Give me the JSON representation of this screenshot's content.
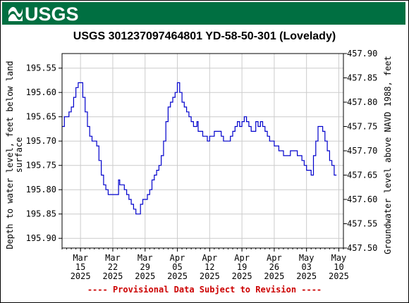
{
  "header": {
    "logo_text": "USGS",
    "banner_color": "#006f41"
  },
  "chart_data": {
    "type": "line",
    "title": "USGS 301237097464801 YD-58-50-301 (Lovelady)",
    "ylabel_left_line1": "Depth to water level, feet below land",
    "ylabel_left_line2": "surface",
    "ylabel_right": "Groundwater level above NAVD 1988, feet",
    "left_axis": {
      "range": [
        195.52,
        195.92
      ],
      "inverted": true,
      "ticks": [
        "195.55",
        "195.60",
        "195.65",
        "195.70",
        "195.75",
        "195.80",
        "195.85",
        "195.90"
      ],
      "tick_values": [
        195.55,
        195.6,
        195.65,
        195.7,
        195.75,
        195.8,
        195.85,
        195.9
      ]
    },
    "right_axis": {
      "range": [
        457.5,
        457.9
      ],
      "ticks": [
        "457.90",
        "457.85",
        "457.80",
        "457.75",
        "457.70",
        "457.65",
        "457.60",
        "457.55",
        "457.50"
      ],
      "tick_values": [
        457.9,
        457.85,
        457.8,
        457.75,
        457.7,
        457.65,
        457.6,
        457.55,
        457.5
      ]
    },
    "x_axis": {
      "start": "2025-03-11",
      "end": "2025-05-11",
      "ticks": [
        {
          "date": "2025-03-15",
          "line1": "Mar",
          "line2": "15",
          "line3": "2025"
        },
        {
          "date": "2025-03-22",
          "line1": "Mar",
          "line2": "22",
          "line3": "2025"
        },
        {
          "date": "2025-03-29",
          "line1": "Mar",
          "line2": "29",
          "line3": "2025"
        },
        {
          "date": "2025-04-05",
          "line1": "Apr",
          "line2": "05",
          "line3": "2025"
        },
        {
          "date": "2025-04-12",
          "line1": "Apr",
          "line2": "12",
          "line3": "2025"
        },
        {
          "date": "2025-04-19",
          "line1": "Apr",
          "line2": "19",
          "line3": "2025"
        },
        {
          "date": "2025-04-26",
          "line1": "Apr",
          "line2": "26",
          "line3": "2025"
        },
        {
          "date": "2025-05-03",
          "line1": "May",
          "line2": "03",
          "line3": "2025"
        },
        {
          "date": "2025-05-10",
          "line1": "May",
          "line2": "10",
          "line3": "2025"
        }
      ]
    },
    "grid": true,
    "series": [
      {
        "color": "#0000cc",
        "points": [
          [
            "2025-03-11",
            195.67
          ],
          [
            "2025-03-11T12:00",
            195.65
          ],
          [
            "2025-03-12",
            195.65
          ],
          [
            "2025-03-12T12:00",
            195.64
          ],
          [
            "2025-03-13",
            195.63
          ],
          [
            "2025-03-13T12:00",
            195.61
          ],
          [
            "2025-03-14",
            195.59
          ],
          [
            "2025-03-14T12:00",
            195.58
          ],
          [
            "2025-03-15",
            195.58
          ],
          [
            "2025-03-15T12:00",
            195.61
          ],
          [
            "2025-03-16",
            195.64
          ],
          [
            "2025-03-16T12:00",
            195.67
          ],
          [
            "2025-03-17",
            195.69
          ],
          [
            "2025-03-17T12:00",
            195.7
          ],
          [
            "2025-03-18",
            195.7
          ],
          [
            "2025-03-18T12:00",
            195.71
          ],
          [
            "2025-03-19",
            195.74
          ],
          [
            "2025-03-19T12:00",
            195.77
          ],
          [
            "2025-03-20",
            195.79
          ],
          [
            "2025-03-20T12:00",
            195.8
          ],
          [
            "2025-03-21",
            195.81
          ],
          [
            "2025-03-22",
            195.81
          ],
          [
            "2025-03-22T12:00",
            195.81
          ],
          [
            "2025-03-23",
            195.81
          ],
          [
            "2025-03-23T06:00",
            195.78
          ],
          [
            "2025-03-23T12:00",
            195.79
          ],
          [
            "2025-03-24",
            195.79
          ],
          [
            "2025-03-24T12:00",
            195.8
          ],
          [
            "2025-03-25",
            195.81
          ],
          [
            "2025-03-25T12:00",
            195.82
          ],
          [
            "2025-03-26",
            195.83
          ],
          [
            "2025-03-26T12:00",
            195.84
          ],
          [
            "2025-03-27",
            195.85
          ],
          [
            "2025-03-27T12:00",
            195.85
          ],
          [
            "2025-03-28",
            195.83
          ],
          [
            "2025-03-28T12:00",
            195.82
          ],
          [
            "2025-03-29",
            195.82
          ],
          [
            "2025-03-29T12:00",
            195.81
          ],
          [
            "2025-03-30",
            195.8
          ],
          [
            "2025-03-30T12:00",
            195.78
          ],
          [
            "2025-03-31",
            195.77
          ],
          [
            "2025-03-31T12:00",
            195.76
          ],
          [
            "2025-04-01",
            195.75
          ],
          [
            "2025-04-01T12:00",
            195.73
          ],
          [
            "2025-04-02",
            195.7
          ],
          [
            "2025-04-02T12:00",
            195.66
          ],
          [
            "2025-04-03",
            195.63
          ],
          [
            "2025-04-03T12:00",
            195.62
          ],
          [
            "2025-04-04",
            195.61
          ],
          [
            "2025-04-04T12:00",
            195.6
          ],
          [
            "2025-04-05",
            195.58
          ],
          [
            "2025-04-05T12:00",
            195.6
          ],
          [
            "2025-04-06",
            195.62
          ],
          [
            "2025-04-06T12:00",
            195.63
          ],
          [
            "2025-04-07",
            195.64
          ],
          [
            "2025-04-07T12:00",
            195.65
          ],
          [
            "2025-04-08",
            195.66
          ],
          [
            "2025-04-08T12:00",
            195.67
          ],
          [
            "2025-04-09",
            195.67
          ],
          [
            "2025-04-09T06:00",
            195.66
          ],
          [
            "2025-04-09T12:00",
            195.68
          ],
          [
            "2025-04-10",
            195.68
          ],
          [
            "2025-04-10T12:00",
            195.69
          ],
          [
            "2025-04-11",
            195.69
          ],
          [
            "2025-04-11T12:00",
            195.7
          ],
          [
            "2025-04-12",
            195.69
          ],
          [
            "2025-04-12T12:00",
            195.69
          ],
          [
            "2025-04-13",
            195.68
          ],
          [
            "2025-04-13T12:00",
            195.68
          ],
          [
            "2025-04-14",
            195.68
          ],
          [
            "2025-04-14T12:00",
            195.69
          ],
          [
            "2025-04-15",
            195.7
          ],
          [
            "2025-04-15T12:00",
            195.7
          ],
          [
            "2025-04-16",
            195.7
          ],
          [
            "2025-04-16T12:00",
            195.69
          ],
          [
            "2025-04-17",
            195.68
          ],
          [
            "2025-04-17T12:00",
            195.67
          ],
          [
            "2025-04-18",
            195.66
          ],
          [
            "2025-04-18T12:00",
            195.67
          ],
          [
            "2025-04-19",
            195.66
          ],
          [
            "2025-04-19T12:00",
            195.65
          ],
          [
            "2025-04-20",
            195.66
          ],
          [
            "2025-04-20T12:00",
            195.67
          ],
          [
            "2025-04-21",
            195.68
          ],
          [
            "2025-04-21T12:00",
            195.68
          ],
          [
            "2025-04-22",
            195.66
          ],
          [
            "2025-04-22T12:00",
            195.67
          ],
          [
            "2025-04-23",
            195.66
          ],
          [
            "2025-04-23T12:00",
            195.67
          ],
          [
            "2025-04-24",
            195.68
          ],
          [
            "2025-04-24T12:00",
            195.69
          ],
          [
            "2025-04-25",
            195.7
          ],
          [
            "2025-04-25T12:00",
            195.7
          ],
          [
            "2025-04-26",
            195.71
          ],
          [
            "2025-04-26T12:00",
            195.71
          ],
          [
            "2025-04-27",
            195.72
          ],
          [
            "2025-04-27T12:00",
            195.72
          ],
          [
            "2025-04-28",
            195.73
          ],
          [
            "2025-04-29",
            195.73
          ],
          [
            "2025-04-29T12:00",
            195.72
          ],
          [
            "2025-04-30",
            195.72
          ],
          [
            "2025-04-30T12:00",
            195.72
          ],
          [
            "2025-05-01",
            195.73
          ],
          [
            "2025-05-01T12:00",
            195.73
          ],
          [
            "2025-05-02",
            195.74
          ],
          [
            "2025-05-02T12:00",
            195.75
          ],
          [
            "2025-05-03",
            195.76
          ],
          [
            "2025-05-03T12:00",
            195.76
          ],
          [
            "2025-05-04",
            195.77
          ],
          [
            "2025-05-04T12:00",
            195.73
          ],
          [
            "2025-05-05",
            195.7
          ],
          [
            "2025-05-05T12:00",
            195.67
          ],
          [
            "2025-05-06",
            195.67
          ],
          [
            "2025-05-06T12:00",
            195.68
          ],
          [
            "2025-05-07",
            195.7
          ],
          [
            "2025-05-07T12:00",
            195.72
          ],
          [
            "2025-05-08",
            195.74
          ],
          [
            "2025-05-08T12:00",
            195.75
          ],
          [
            "2025-05-09",
            195.77
          ],
          [
            "2025-05-09T12:00",
            195.77
          ]
        ]
      }
    ]
  },
  "footer": {
    "provisional": "---- Provisional Data Subject to Revision ----"
  }
}
